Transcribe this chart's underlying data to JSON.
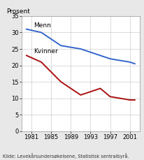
{
  "menn_x": [
    1980,
    1983,
    1987,
    1991,
    1995,
    1997,
    2001,
    2002
  ],
  "menn_y": [
    31,
    30,
    26,
    25,
    23,
    22,
    21,
    20.5
  ],
  "kvinner_x": [
    1980,
    1983,
    1987,
    1991,
    1995,
    1997,
    2001,
    2002
  ],
  "kvinner_y": [
    23,
    21,
    15,
    11,
    13,
    10.5,
    9.5,
    9.5
  ],
  "menn_color": "#3366cc",
  "kvinner_color": "#aa1111",
  "prosent_label": "Prosent",
  "source": "Kilde: Levekårsundersøkelsene, Statistisk sentralbyrå.",
  "ylim": [
    0,
    35
  ],
  "yticks": [
    0,
    5,
    10,
    15,
    20,
    25,
    30,
    35
  ],
  "xticks": [
    1981,
    1985,
    1989,
    1993,
    1997,
    2001
  ],
  "xmin": 1979,
  "xmax": 2003,
  "menn_label": "Menn",
  "kvinner_label": "Kvinner",
  "bg_color": "#e8e8e8",
  "plot_bg_color": "#ffffff"
}
